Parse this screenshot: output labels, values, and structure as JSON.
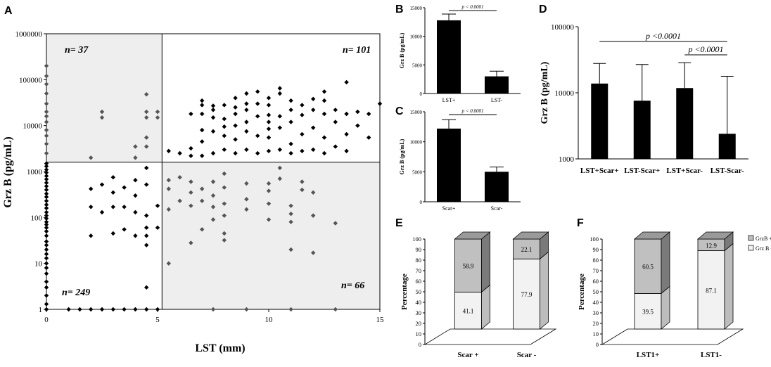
{
  "chart_data": [
    {
      "panel": "A",
      "type": "scatter",
      "xlabel": "LST (mm)",
      "ylabel": "Grz B (pg/mL)",
      "xlim": [
        0,
        15
      ],
      "ylim": [
        1,
        1000000
      ],
      "yscale": "log",
      "xticks": [
        "0",
        "5",
        "10",
        "15"
      ],
      "yticks": [
        "1",
        "10",
        "100",
        "1000",
        "10000",
        "100000",
        "1000000"
      ],
      "thresholds": {
        "x": 5.2,
        "y": 1600
      },
      "quadrants": [
        {
          "label": "n= 37",
          "position": "top-left",
          "shaded": true
        },
        {
          "label": "n= 101",
          "position": "top-right",
          "shaded": false
        },
        {
          "label": "n= 249",
          "position": "bottom-left",
          "shaded": false
        },
        {
          "label": "n= 66",
          "position": "bottom-right",
          "shaded": true
        }
      ],
      "points": [
        [
          0,
          1
        ],
        [
          0,
          1.3
        ],
        [
          0,
          2
        ],
        [
          0,
          3
        ],
        [
          0,
          4
        ],
        [
          0,
          6
        ],
        [
          0,
          8
        ],
        [
          0,
          10
        ],
        [
          0,
          13
        ],
        [
          0,
          16
        ],
        [
          0,
          20
        ],
        [
          0,
          25
        ],
        [
          0,
          30
        ],
        [
          0,
          40
        ],
        [
          0,
          50
        ],
        [
          0,
          60
        ],
        [
          0,
          70
        ],
        [
          0,
          80
        ],
        [
          0,
          95
        ],
        [
          0,
          110
        ],
        [
          0,
          130
        ],
        [
          0,
          160
        ],
        [
          0,
          190
        ],
        [
          0,
          230
        ],
        [
          0,
          280
        ],
        [
          0,
          330
        ],
        [
          0,
          400
        ],
        [
          0,
          480
        ],
        [
          0,
          570
        ],
        [
          0,
          680
        ],
        [
          0,
          800
        ],
        [
          0,
          950
        ],
        [
          0,
          1100
        ],
        [
          0,
          1300
        ],
        [
          0,
          1500
        ],
        [
          0,
          2500
        ],
        [
          0,
          4000
        ],
        [
          0,
          6000
        ],
        [
          0,
          8000
        ],
        [
          0,
          12000
        ],
        [
          0,
          16000
        ],
        [
          0,
          20000
        ],
        [
          0,
          30000
        ],
        [
          0,
          50000
        ],
        [
          0,
          80000
        ],
        [
          0,
          120000
        ],
        [
          0,
          200000
        ],
        [
          1,
          1
        ],
        [
          1.5,
          1
        ],
        [
          2,
          1
        ],
        [
          2.5,
          1
        ],
        [
          3,
          1
        ],
        [
          3.5,
          1
        ],
        [
          4,
          1
        ],
        [
          4.5,
          1
        ],
        [
          5,
          1
        ],
        [
          7.5,
          1
        ],
        [
          9,
          1
        ],
        [
          11,
          1
        ],
        [
          13,
          1
        ],
        [
          2,
          40
        ],
        [
          2,
          170
        ],
        [
          2,
          420
        ],
        [
          2.5,
          130
        ],
        [
          2.5,
          520
        ],
        [
          3,
          45
        ],
        [
          3,
          170
        ],
        [
          3,
          350
        ],
        [
          3,
          750
        ],
        [
          3.5,
          55
        ],
        [
          3.5,
          170
        ],
        [
          3.5,
          450
        ],
        [
          4,
          40
        ],
        [
          4,
          130
        ],
        [
          4,
          300
        ],
        [
          4,
          650
        ],
        [
          4.5,
          25
        ],
        [
          4.5,
          40
        ],
        [
          4.5,
          60
        ],
        [
          4.5,
          110
        ],
        [
          4.5,
          520
        ],
        [
          4.5,
          1200
        ],
        [
          4.5,
          3
        ],
        [
          5,
          60
        ],
        [
          5,
          180
        ],
        [
          2.5,
          20000
        ],
        [
          2.5,
          15000
        ],
        [
          4,
          3500
        ],
        [
          4,
          2000
        ],
        [
          4.5,
          48000
        ],
        [
          4.5,
          20000
        ],
        [
          4.5,
          15000
        ],
        [
          4.5,
          5500
        ],
        [
          4.5,
          3500
        ],
        [
          5,
          20000
        ],
        [
          5,
          15000
        ],
        [
          2,
          2000
        ],
        [
          5.5,
          10
        ],
        [
          5.5,
          150
        ],
        [
          5.5,
          420
        ],
        [
          5.5,
          650
        ],
        [
          6,
          230
        ],
        [
          6,
          750
        ],
        [
          6.5,
          28
        ],
        [
          6.5,
          180
        ],
        [
          6.5,
          350
        ],
        [
          6.5,
          600
        ],
        [
          7,
          55
        ],
        [
          7,
          230
        ],
        [
          7,
          420
        ],
        [
          7.5,
          90
        ],
        [
          7.5,
          170
        ],
        [
          7.5,
          300
        ],
        [
          7.5,
          600
        ],
        [
          8,
          32
        ],
        [
          8,
          45
        ],
        [
          8,
          110
        ],
        [
          8,
          200
        ],
        [
          8,
          450
        ],
        [
          8,
          900
        ],
        [
          9,
          150
        ],
        [
          9,
          250
        ],
        [
          9,
          550
        ],
        [
          10,
          90
        ],
        [
          10,
          200
        ],
        [
          10,
          380
        ],
        [
          10,
          550
        ],
        [
          10.5,
          700
        ],
        [
          11,
          20
        ],
        [
          11,
          80
        ],
        [
          11,
          120
        ],
        [
          11,
          180
        ],
        [
          11.5,
          400
        ],
        [
          11.5,
          600
        ],
        [
          12,
          17
        ],
        [
          12,
          110
        ],
        [
          12,
          350
        ],
        [
          13,
          75
        ],
        [
          10.5,
          1200
        ],
        [
          5.5,
          2800
        ],
        [
          6,
          2500
        ],
        [
          6.5,
          2200
        ],
        [
          6.5,
          3200
        ],
        [
          6.5,
          18000
        ],
        [
          7,
          2200
        ],
        [
          7,
          4500
        ],
        [
          7,
          8000
        ],
        [
          7,
          18000
        ],
        [
          7,
          28000
        ],
        [
          7,
          35000
        ],
        [
          7.5,
          2500
        ],
        [
          7.5,
          7500
        ],
        [
          7.5,
          15000
        ],
        [
          7.5,
          22000
        ],
        [
          7.5,
          27000
        ],
        [
          8,
          3000
        ],
        [
          8,
          6000
        ],
        [
          8,
          9500
        ],
        [
          8,
          14000
        ],
        [
          8,
          28000
        ],
        [
          8.5,
          2500
        ],
        [
          8.5,
          5000
        ],
        [
          8.5,
          10000
        ],
        [
          8.5,
          18000
        ],
        [
          8.5,
          25000
        ],
        [
          8.5,
          40000
        ],
        [
          9,
          3000
        ],
        [
          9,
          7500
        ],
        [
          9,
          12000
        ],
        [
          9,
          22000
        ],
        [
          9,
          30000
        ],
        [
          9,
          50000
        ],
        [
          9.5,
          2500
        ],
        [
          9.5,
          6000
        ],
        [
          9.5,
          16000
        ],
        [
          9.5,
          30000
        ],
        [
          9.5,
          55000
        ],
        [
          10,
          2800
        ],
        [
          10,
          5500
        ],
        [
          10,
          8500
        ],
        [
          10,
          12000
        ],
        [
          10,
          17000
        ],
        [
          10,
          28000
        ],
        [
          10,
          40000
        ],
        [
          10.5,
          3000
        ],
        [
          10.5,
          9000
        ],
        [
          10.5,
          16000
        ],
        [
          10.5,
          50000
        ],
        [
          10.5,
          65000
        ],
        [
          11,
          2500
        ],
        [
          11,
          4000
        ],
        [
          11,
          12000
        ],
        [
          11,
          22000
        ],
        [
          11,
          35000
        ],
        [
          11.5,
          2800
        ],
        [
          11.5,
          6500
        ],
        [
          11.5,
          17000
        ],
        [
          11.5,
          28000
        ],
        [
          12,
          3000
        ],
        [
          12,
          9000
        ],
        [
          12,
          22000
        ],
        [
          12,
          38000
        ],
        [
          12.5,
          2500
        ],
        [
          12.5,
          5500
        ],
        [
          12.5,
          18000
        ],
        [
          12.5,
          35000
        ],
        [
          12.5,
          55000
        ],
        [
          13,
          3500
        ],
        [
          13,
          12000
        ],
        [
          13,
          22000
        ],
        [
          13.5,
          2800
        ],
        [
          13.5,
          6500
        ],
        [
          13.5,
          18000
        ],
        [
          13.5,
          88000
        ],
        [
          14,
          10000
        ],
        [
          14,
          20000
        ],
        [
          14.5,
          5500
        ],
        [
          14.5,
          18000
        ],
        [
          15,
          30000
        ]
      ]
    },
    {
      "panel": "B",
      "type": "bar",
      "categories": [
        "LST+",
        "LST-"
      ],
      "values": [
        12800,
        3000
      ],
      "errors": [
        1100,
        900
      ],
      "ylabel": "Grz B (pg/mL)",
      "ylim": [
        0,
        15000
      ],
      "yticks": [
        "0",
        "5000",
        "10000",
        "15000"
      ],
      "annotation": "p < 0.0001"
    },
    {
      "panel": "C",
      "type": "bar",
      "categories": [
        "Scar+",
        "Scar-"
      ],
      "values": [
        12200,
        5000
      ],
      "errors": [
        1500,
        800
      ],
      "ylabel": "Grz B (pg/mL)",
      "ylim": [
        0,
        15000
      ],
      "yticks": [
        "0",
        "5000",
        "10000",
        "15000"
      ],
      "annotation": "p < 0.0001"
    },
    {
      "panel": "D",
      "type": "bar",
      "categories": [
        "LST+Scar+",
        "LST-Scar+",
        "LST+Scar-",
        "LST-Scar-"
      ],
      "values": [
        13800,
        7600,
        11800,
        2400
      ],
      "errors_upper": [
        27800,
        26800,
        28600,
        17800
      ],
      "ylabel": "Grz B (pg/mL)",
      "yscale": "log",
      "ylim": [
        1000,
        100000
      ],
      "yticks": [
        "1000",
        "10000",
        "100000"
      ],
      "annotations": [
        {
          "text": "p <0.0001",
          "from": "LST+Scar+",
          "to": "LST-Scar-"
        },
        {
          "text": "p <0.0001",
          "from": "LST+Scar-",
          "to": "LST-Scar-"
        }
      ]
    },
    {
      "panel": "E",
      "type": "bar",
      "stacked": true,
      "categories": [
        "Scar +",
        "Scar -"
      ],
      "series": [
        {
          "name": "Grz B -",
          "values": [
            41.1,
            77.9
          ],
          "color": "#f2f2f2"
        },
        {
          "name": "GrzB +",
          "values": [
            58.9,
            22.1
          ],
          "color": "#c0c0c0"
        }
      ],
      "ylabel": "Percentage",
      "ylim": [
        0,
        100
      ],
      "yticks": [
        "0",
        "10",
        "20",
        "30",
        "40",
        "50",
        "60",
        "70",
        "80",
        "90",
        "100"
      ]
    },
    {
      "panel": "F",
      "type": "bar",
      "stacked": true,
      "categories": [
        "LST1+",
        "LST1-"
      ],
      "series": [
        {
          "name": "Grz B -",
          "values": [
            39.5,
            87.1
          ],
          "color": "#f2f2f2"
        },
        {
          "name": "GrzB +",
          "values": [
            60.5,
            12.9
          ],
          "color": "#c0c0c0"
        }
      ],
      "ylabel": "Percentage",
      "ylim": [
        0,
        100
      ],
      "yticks": [
        "0",
        "10",
        "20",
        "30",
        "40",
        "50",
        "60",
        "70",
        "80",
        "90",
        "100"
      ],
      "legend": [
        "GrzB +",
        "Grz B -"
      ]
    }
  ]
}
